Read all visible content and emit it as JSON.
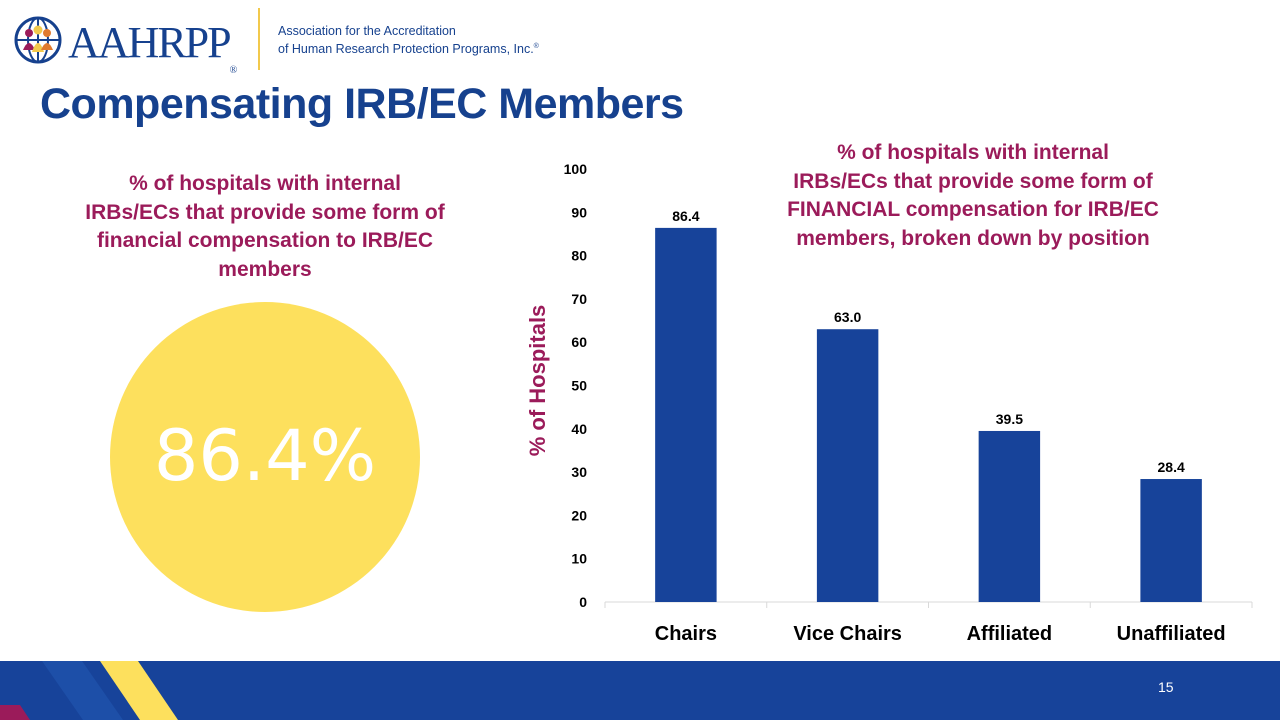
{
  "logo": {
    "wordmark": "AAHRPP",
    "registered": "®",
    "tagline_line1": "Association for the Accreditation",
    "tagline_line2": "of Human Research Protection Programs, Inc.",
    "tagline_mark": "®"
  },
  "slide": {
    "title": "Compensating IRB/EC Members",
    "page_number": "15"
  },
  "left_panel": {
    "caption_line1": "% of hospitals with internal",
    "caption_line2": "IRBs/ECs that provide some form of",
    "caption_line3": "financial compensation to IRB/EC",
    "caption_line4": "members",
    "value": "86.4%"
  },
  "chart_title": {
    "line1": "% of hospitals with internal",
    "line2": "IRBs/ECs that provide some form of",
    "line3": "FINANCIAL compensation for IRB/EC",
    "line4": "members, broken down by position"
  },
  "chart_data": {
    "type": "bar",
    "categories": [
      "Chairs",
      "Vice Chairs",
      "Affiliated",
      "Unaffiliated"
    ],
    "values": [
      86.4,
      63.0,
      39.5,
      28.4
    ],
    "value_labels": [
      "86.4",
      "63.0",
      "39.5",
      "28.4"
    ],
    "title": "% of hospitals with internal IRBs/ECs that provide some form of FINANCIAL compensation for IRB/EC members, broken down by position",
    "xlabel": "",
    "ylabel": "% of Hospitals",
    "ylim": [
      0,
      100
    ],
    "yticks": [
      0,
      10,
      20,
      30,
      40,
      50,
      60,
      70,
      80,
      90,
      100
    ],
    "grid": false,
    "legend": "none",
    "bar_color": "#17439a"
  },
  "colors": {
    "brand_blue": "#16418e",
    "accent_magenta": "#9b1b5a",
    "circle_yellow": "#fde05d",
    "footer_blue": "#17439a",
    "footer_yellow": "#fde05d",
    "footer_magenta": "#9b1b5a"
  },
  "icons": {
    "logo_globe": "globe-people-icon"
  }
}
